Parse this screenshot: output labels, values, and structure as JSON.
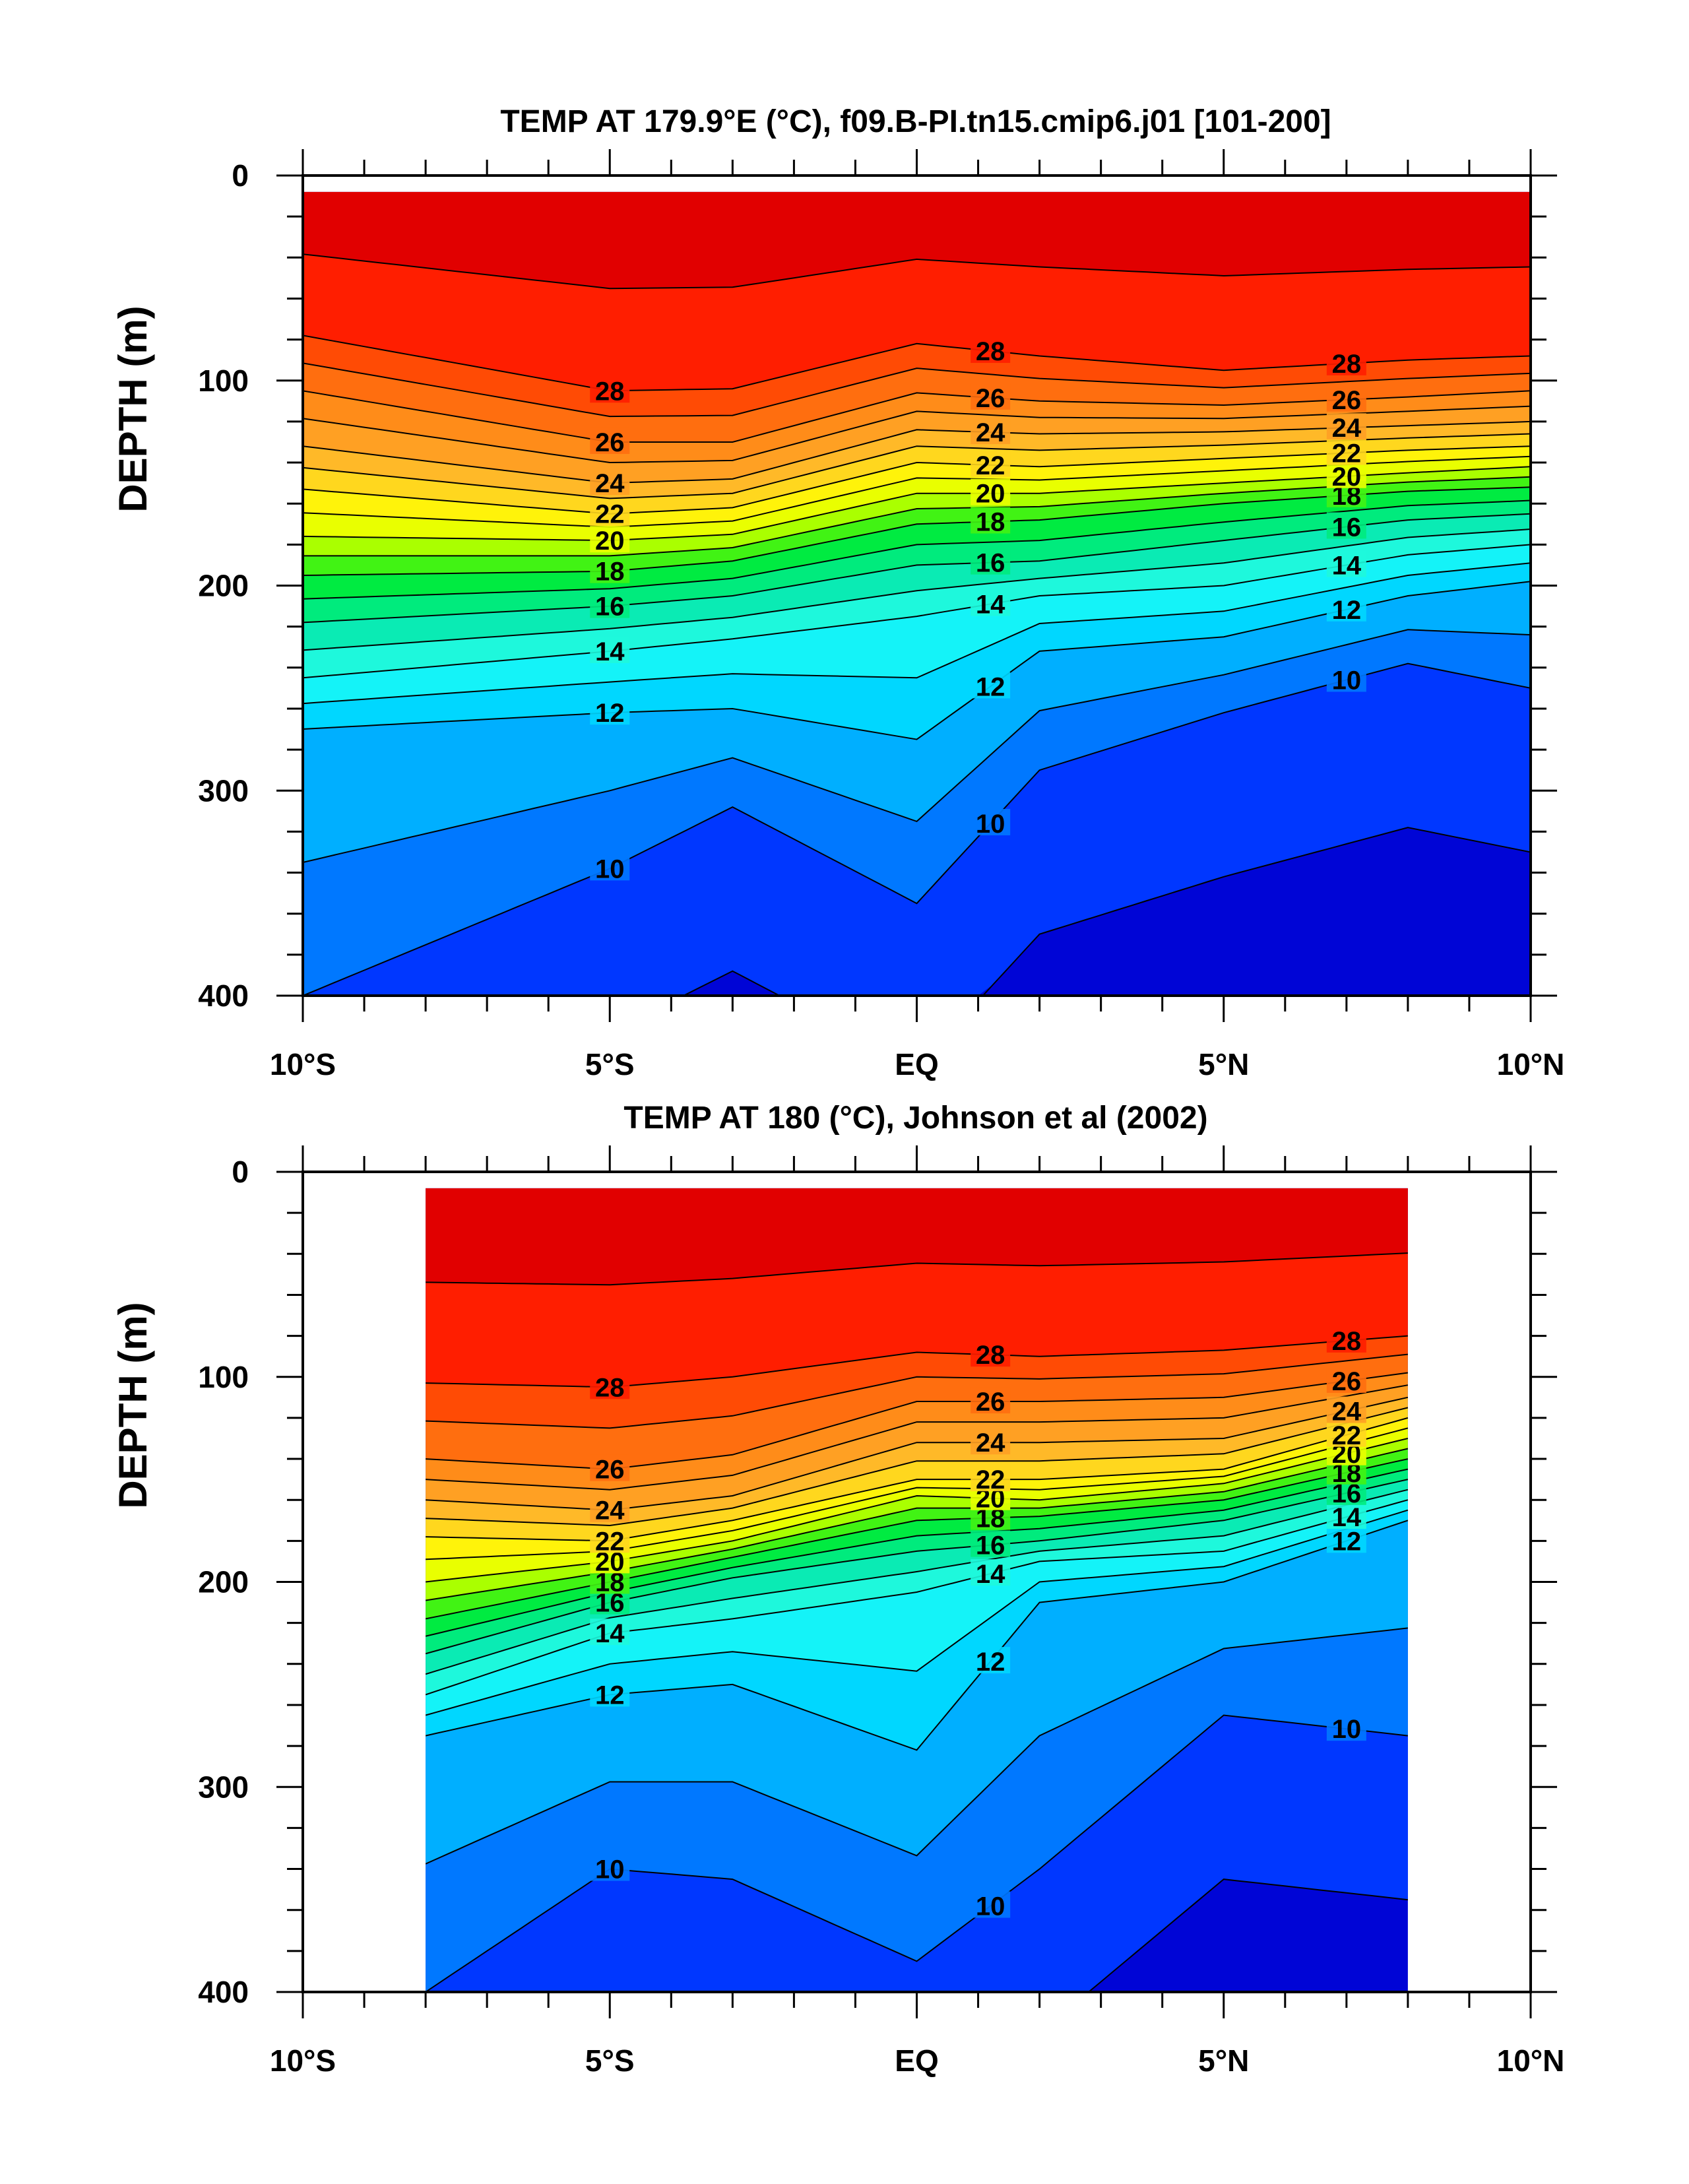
{
  "chart_data": [
    {
      "type": "contour",
      "title": "TEMP AT 179.9°E (°C), f09.B-PI.tn15.cmip6.j01 [101-200]",
      "ylabel": "DEPTH (m)",
      "xlim": [
        -10,
        10
      ],
      "ylim": [
        400,
        0
      ],
      "x_ticks": [
        -10,
        -5,
        0,
        5,
        10
      ],
      "x_tick_labels": [
        "10°S",
        "5°S",
        "EQ",
        "5°N",
        "10°N"
      ],
      "y_ticks": [
        0,
        100,
        200,
        300,
        400
      ],
      "y_tick_labels": [
        "0",
        "100",
        "200",
        "300",
        "400"
      ],
      "data_x_range": [
        -10,
        10
      ],
      "contour_interval": 1,
      "labeled_levels": [
        10,
        12,
        14,
        16,
        18,
        20,
        22,
        24,
        26,
        28
      ],
      "isotherm_depths": {
        "x": [
          -10,
          -5,
          -3,
          0,
          2,
          5,
          8,
          10
        ],
        "lines": [
          {
            "level": 28,
            "depth": [
              78,
              105,
              104,
              82,
              88,
              95,
              90,
              88
            ]
          },
          {
            "level": 26,
            "depth": [
              105,
              130,
              130,
              106,
              110,
              112,
              108,
              105
            ]
          },
          {
            "level": 24,
            "depth": [
              132,
              150,
              148,
              124,
              126,
              125,
              122,
              120
            ]
          },
          {
            "level": 22,
            "depth": [
              153,
              165,
              162,
              140,
              142,
              138,
              134,
              132
            ]
          },
          {
            "level": 20,
            "depth": [
              176,
              178,
              175,
              155,
              155,
              150,
              145,
              142
            ]
          },
          {
            "level": 18,
            "depth": [
              195,
              193,
              188,
              170,
              168,
              160,
              154,
              152
            ]
          },
          {
            "level": 16,
            "depth": [
              218,
              210,
              205,
              190,
              188,
              178,
              168,
              165
            ]
          },
          {
            "level": 14,
            "depth": [
              245,
              232,
              226,
              215,
              205,
              200,
              185,
              180
            ]
          },
          {
            "level": 12,
            "depth": [
              270,
              262,
              260,
              275,
              232,
              225,
              205,
              198
            ]
          },
          {
            "level": 10,
            "depth": [
              400,
              338,
              308,
              355,
              290,
              262,
              238,
              250
            ]
          }
        ]
      }
    },
    {
      "type": "contour",
      "title": "TEMP AT 180 (°C), Johnson et al (2002)",
      "ylabel": "DEPTH (m)",
      "xlim": [
        -10,
        10
      ],
      "ylim": [
        400,
        0
      ],
      "x_ticks": [
        -10,
        -5,
        0,
        5,
        10
      ],
      "x_tick_labels": [
        "10°S",
        "5°S",
        "EQ",
        "5°N",
        "10°N"
      ],
      "y_ticks": [
        0,
        100,
        200,
        300,
        400
      ],
      "y_tick_labels": [
        "0",
        "100",
        "200",
        "300",
        "400"
      ],
      "data_x_range": [
        -8,
        8
      ],
      "contour_interval": 1,
      "labeled_levels": [
        10,
        12,
        14,
        16,
        18,
        20,
        22,
        24,
        26,
        28
      ],
      "isotherm_depths": {
        "x": [
          -8,
          -5,
          -3,
          0,
          2,
          5,
          8
        ],
        "lines": [
          {
            "level": 28,
            "depth": [
              103,
              105,
              100,
              88,
              90,
              87,
              80
            ]
          },
          {
            "level": 26,
            "depth": [
              140,
              145,
              138,
              112,
              112,
              110,
              98
            ]
          },
          {
            "level": 24,
            "depth": [
              160,
              165,
              158,
              132,
              132,
              130,
              110
            ]
          },
          {
            "level": 22,
            "depth": [
              178,
              180,
              170,
              150,
              150,
              145,
              120
            ]
          },
          {
            "level": 20,
            "depth": [
              200,
              190,
              180,
              158,
              160,
              152,
              130
            ]
          },
          {
            "level": 18,
            "depth": [
              218,
              200,
              188,
              170,
              168,
              160,
              140
            ]
          },
          {
            "level": 16,
            "depth": [
              235,
              210,
              198,
              185,
              180,
              170,
              150
            ]
          },
          {
            "level": 14,
            "depth": [
              255,
              225,
              218,
              205,
              190,
              185,
              160
            ]
          },
          {
            "level": 12,
            "depth": [
              275,
              255,
              250,
              282,
              210,
              200,
              170
            ]
          },
          {
            "level": 10,
            "depth": [
              400,
              340,
              345,
              385,
              340,
              265,
              275
            ]
          }
        ]
      }
    }
  ]
}
